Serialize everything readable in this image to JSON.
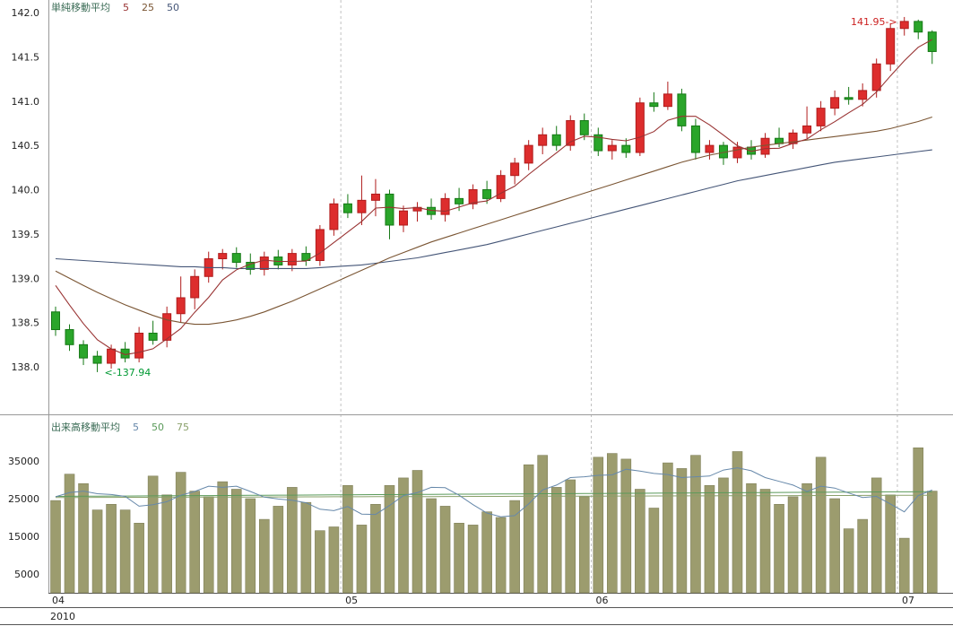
{
  "chart_data": {
    "type": "candlestick_volume",
    "price_panel": {
      "legend": {
        "label": "単純移動平均",
        "periods": [
          "5",
          "25",
          "50"
        ]
      },
      "y_ticks": [
        "142.0",
        "141.5",
        "141.0",
        "140.5",
        "140.0",
        "139.5",
        "139.0",
        "138.5",
        "138.0"
      ],
      "ylim": [
        137.6,
        142.2
      ],
      "annotations": [
        {
          "text": "<-137.94",
          "index": 3,
          "attach": "low",
          "color": "#009933"
        },
        {
          "text": "141.95->",
          "index": 61,
          "attach": "high",
          "color": "#cc2222"
        }
      ]
    },
    "volume_panel": {
      "legend": {
        "label": "出来高移動平均",
        "periods": [
          "5",
          "50",
          "75"
        ]
      },
      "y_ticks": [
        "35000",
        "25000",
        "15000",
        "5000"
      ],
      "ylim": [
        0,
        40000
      ]
    },
    "x_axis": {
      "month_labels": [
        "04",
        "05",
        "06",
        "07"
      ],
      "month_start_indices": [
        0,
        21,
        39,
        61
      ],
      "year": "2010"
    },
    "candle_fields": [
      "date",
      "open",
      "high",
      "low",
      "close",
      "volume"
    ],
    "candles": [
      [
        "2010-04-01",
        138.62,
        138.68,
        138.35,
        138.42,
        24500
      ],
      [
        "2010-04-02",
        138.42,
        138.48,
        138.18,
        138.25,
        31500
      ],
      [
        "2010-04-05",
        138.25,
        138.3,
        138.02,
        138.1,
        29000
      ],
      [
        "2010-04-06",
        138.12,
        138.18,
        137.94,
        138.04,
        22000
      ],
      [
        "2010-04-07",
        138.04,
        138.25,
        137.98,
        138.2,
        23500
      ],
      [
        "2010-04-08",
        138.2,
        138.28,
        138.05,
        138.1,
        22000
      ],
      [
        "2010-04-09",
        138.1,
        138.45,
        138.05,
        138.38,
        18500
      ],
      [
        "2010-04-12",
        138.38,
        138.52,
        138.25,
        138.3,
        31000
      ],
      [
        "2010-04-13",
        138.3,
        138.68,
        138.22,
        138.6,
        26000
      ],
      [
        "2010-04-14",
        138.6,
        139.02,
        138.5,
        138.78,
        32000
      ],
      [
        "2010-04-15",
        138.78,
        139.1,
        138.65,
        139.02,
        27000
      ],
      [
        "2010-04-16",
        139.02,
        139.3,
        138.95,
        139.22,
        25500
      ],
      [
        "2010-04-19",
        139.22,
        139.33,
        139.1,
        139.28,
        29500
      ],
      [
        "2010-04-20",
        139.28,
        139.35,
        139.12,
        139.18,
        27500
      ],
      [
        "2010-04-21",
        139.18,
        139.28,
        139.04,
        139.1,
        25000
      ],
      [
        "2010-04-22",
        139.1,
        139.3,
        139.03,
        139.24,
        19500
      ],
      [
        "2010-04-23",
        139.24,
        139.32,
        139.1,
        139.15,
        23000
      ],
      [
        "2010-04-26",
        139.15,
        139.33,
        139.08,
        139.28,
        28000
      ],
      [
        "2010-04-27",
        139.28,
        139.36,
        139.14,
        139.2,
        24000
      ],
      [
        "2010-04-28",
        139.2,
        139.6,
        139.14,
        139.55,
        16500
      ],
      [
        "2010-04-30",
        139.55,
        139.9,
        139.48,
        139.84,
        17500
      ],
      [
        "2010-05-06",
        139.84,
        139.95,
        139.68,
        139.74,
        28500
      ],
      [
        "2010-05-07",
        139.74,
        140.16,
        139.6,
        139.88,
        18000
      ],
      [
        "2010-05-10",
        139.88,
        140.12,
        139.7,
        139.95,
        23500
      ],
      [
        "2010-05-11",
        139.95,
        140.0,
        139.44,
        139.6,
        28500
      ],
      [
        "2010-05-12",
        139.6,
        139.82,
        139.52,
        139.76,
        30500
      ],
      [
        "2010-05-13",
        139.76,
        139.86,
        139.64,
        139.8,
        32500
      ],
      [
        "2010-05-14",
        139.8,
        139.9,
        139.66,
        139.72,
        25000
      ],
      [
        "2010-05-17",
        139.72,
        139.96,
        139.64,
        139.9,
        23000
      ],
      [
        "2010-05-18",
        139.9,
        140.02,
        139.76,
        139.84,
        18500
      ],
      [
        "2010-05-19",
        139.84,
        140.06,
        139.78,
        140.0,
        18000
      ],
      [
        "2010-05-20",
        140.0,
        140.1,
        139.84,
        139.9,
        21500
      ],
      [
        "2010-05-21",
        139.9,
        140.22,
        139.86,
        140.16,
        20000
      ],
      [
        "2010-05-24",
        140.16,
        140.36,
        140.06,
        140.3,
        24500
      ],
      [
        "2010-05-25",
        140.3,
        140.56,
        140.22,
        140.5,
        34000
      ],
      [
        "2010-05-26",
        140.5,
        140.7,
        140.4,
        140.62,
        36500
      ],
      [
        "2010-05-27",
        140.62,
        140.72,
        140.44,
        140.5,
        28000
      ],
      [
        "2010-05-28",
        140.5,
        140.84,
        140.44,
        140.78,
        30000
      ],
      [
        "2010-05-31",
        140.78,
        140.86,
        140.56,
        140.62,
        25500
      ],
      [
        "2010-06-01",
        140.62,
        140.7,
        140.38,
        140.44,
        36000
      ],
      [
        "2010-06-02",
        140.44,
        140.56,
        140.34,
        140.5,
        37000
      ],
      [
        "2010-06-03",
        140.5,
        140.58,
        140.36,
        140.42,
        35500
      ],
      [
        "2010-06-04",
        140.42,
        141.04,
        140.38,
        140.98,
        27500
      ],
      [
        "2010-06-07",
        140.98,
        141.1,
        140.88,
        140.94,
        22500
      ],
      [
        "2010-06-08",
        140.94,
        141.22,
        140.9,
        141.08,
        34500
      ],
      [
        "2010-06-09",
        141.08,
        141.14,
        140.66,
        140.72,
        33000
      ],
      [
        "2010-06-10",
        140.72,
        140.8,
        140.34,
        140.42,
        36500
      ],
      [
        "2010-06-11",
        140.42,
        140.56,
        140.34,
        140.5,
        28500
      ],
      [
        "2010-06-14",
        140.5,
        140.54,
        140.28,
        140.36,
        30500
      ],
      [
        "2010-06-15",
        140.36,
        140.54,
        140.3,
        140.48,
        37500
      ],
      [
        "2010-06-16",
        140.48,
        140.56,
        140.34,
        140.4,
        29000
      ],
      [
        "2010-06-17",
        140.4,
        140.64,
        140.36,
        140.58,
        27500
      ],
      [
        "2010-06-18",
        140.58,
        140.7,
        140.48,
        140.52,
        23500
      ],
      [
        "2010-06-21",
        140.52,
        140.68,
        140.46,
        140.64,
        25500
      ],
      [
        "2010-06-22",
        140.64,
        140.94,
        140.58,
        140.72,
        29000
      ],
      [
        "2010-06-23",
        140.72,
        141.0,
        140.66,
        140.92,
        36000
      ],
      [
        "2010-06-24",
        140.92,
        141.12,
        140.84,
        141.04,
        25000
      ],
      [
        "2010-06-25",
        141.04,
        141.16,
        140.96,
        141.02,
        17000
      ],
      [
        "2010-06-28",
        141.02,
        141.2,
        140.94,
        141.12,
        19500
      ],
      [
        "2010-06-29",
        141.12,
        141.48,
        141.04,
        141.42,
        30500
      ],
      [
        "2010-06-30",
        141.42,
        141.88,
        141.34,
        141.82,
        26000
      ],
      [
        "2010-07-01",
        141.82,
        141.95,
        141.74,
        141.9,
        14500
      ],
      [
        "2010-07-02",
        141.9,
        141.92,
        141.7,
        141.78,
        38500
      ],
      [
        "2010-07-05",
        141.78,
        141.8,
        141.42,
        141.56,
        27000
      ]
    ],
    "ma": {
      "ma5_seed": [
        139.35,
        139.15,
        138.95,
        138.72
      ],
      "ma25_values": [
        139.08,
        139.0,
        138.92,
        138.84,
        138.77,
        138.7,
        138.64,
        138.58,
        138.53,
        138.5,
        138.48,
        138.48,
        138.5,
        138.53,
        138.57,
        138.62,
        138.68,
        138.74,
        138.81,
        138.88,
        138.95,
        139.02,
        139.09,
        139.16,
        139.23,
        139.29,
        139.35,
        139.41,
        139.46,
        139.51,
        139.56,
        139.61,
        139.66,
        139.71,
        139.76,
        139.81,
        139.86,
        139.91,
        139.96,
        140.01,
        140.06,
        140.11,
        140.16,
        140.21,
        140.26,
        140.31,
        140.35,
        140.39,
        140.42,
        140.45,
        140.48,
        140.5,
        140.52,
        140.54,
        140.56,
        140.58,
        140.6,
        140.62,
        140.64,
        140.66,
        140.69,
        140.73,
        140.77,
        140.82
      ],
      "ma50_values": [
        139.22,
        139.21,
        139.2,
        139.19,
        139.18,
        139.17,
        139.16,
        139.15,
        139.14,
        139.13,
        139.13,
        139.12,
        139.12,
        139.11,
        139.11,
        139.11,
        139.11,
        139.11,
        139.11,
        139.12,
        139.13,
        139.14,
        139.15,
        139.17,
        139.19,
        139.21,
        139.23,
        139.26,
        139.29,
        139.32,
        139.35,
        139.38,
        139.42,
        139.46,
        139.5,
        139.54,
        139.58,
        139.62,
        139.66,
        139.7,
        139.74,
        139.78,
        139.82,
        139.86,
        139.9,
        139.94,
        139.98,
        140.02,
        140.06,
        140.1,
        140.13,
        140.16,
        140.19,
        140.22,
        140.25,
        140.28,
        140.31,
        140.33,
        140.35,
        140.37,
        140.39,
        140.41,
        140.43,
        140.45
      ]
    },
    "vol_ma": {
      "ma5_seed": [
        26000,
        27000,
        25500,
        24500
      ],
      "ma50_line": {
        "first": 25600,
        "last": 26860
      },
      "ma75_line": {
        "first": 25300,
        "last": 25900
      }
    },
    "colors": {
      "up": "#dd2d2d",
      "up_stroke": "#b01c1c",
      "down": "#2aa52a",
      "down_stroke": "#157815",
      "volume_bar": "#9c9c6e",
      "volume_bar_stroke": "#80805a",
      "ma5": "#993333",
      "ma25": "#7a5533",
      "ma50": "#445577",
      "vol_ma5": "#6688aa",
      "vol_ma50": "#5a9a5a",
      "vol_ma75": "#8aa06a",
      "legend_label": "#3a6b55",
      "grid": "#c0c0c0",
      "axis": "#999999",
      "frame": "#555555",
      "text": "#222222"
    }
  }
}
